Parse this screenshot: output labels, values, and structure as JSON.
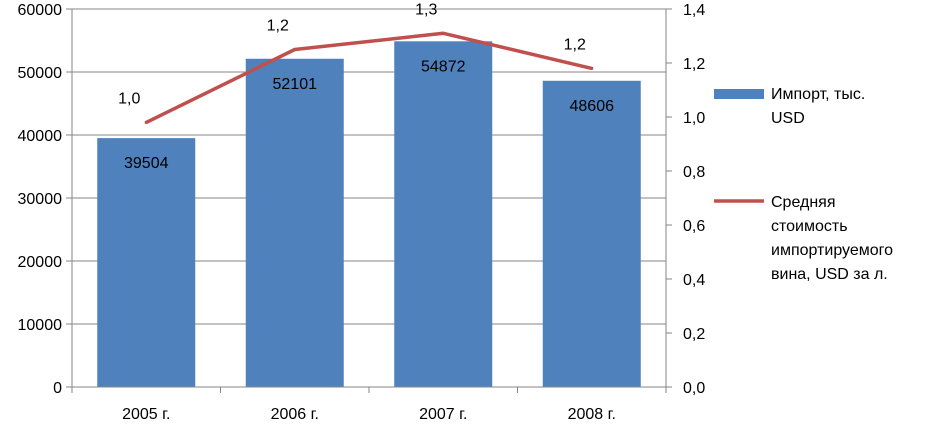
{
  "chart_data": {
    "type": "bar",
    "categories": [
      "2005 г.",
      "2006 г.",
      "2007 г.",
      "2008 г."
    ],
    "series": [
      {
        "name": "Импорт, тыс. USD",
        "type": "bar",
        "axis": "left",
        "values": [
          39504,
          52101,
          54872,
          48606
        ],
        "labels": [
          "39504",
          "52101",
          "54872",
          "48606"
        ],
        "color": "#4F81BD"
      },
      {
        "name": "Средняя стоимость импортируемого вина, USD за л.",
        "type": "line",
        "axis": "right",
        "values": [
          0.98,
          1.25,
          1.31,
          1.18
        ],
        "labels": [
          "1,0",
          "1,2",
          "1,3",
          "1,2"
        ],
        "color": "#C0504D"
      }
    ],
    "y_left": {
      "ylim": [
        0,
        60000
      ],
      "ticks": [
        "0",
        "10000",
        "20000",
        "30000",
        "40000",
        "50000",
        "60000"
      ]
    },
    "y_right": {
      "ylim": [
        0,
        1.4
      ],
      "ticks": [
        "0,0",
        "0,2",
        "0,4",
        "0,6",
        "0,8",
        "1,0",
        "1,2",
        "1,4"
      ]
    },
    "grid": "horizontal",
    "legend_position": "right",
    "legend": [
      {
        "lines": [
          "Импорт, тыс.",
          "USD"
        ],
        "marker": "bar",
        "color": "#4F81BD"
      },
      {
        "lines": [
          "Средняя",
          "стоимость",
          "импортируемого",
          "вина, USD за л."
        ],
        "marker": "line",
        "color": "#C0504D"
      }
    ]
  }
}
